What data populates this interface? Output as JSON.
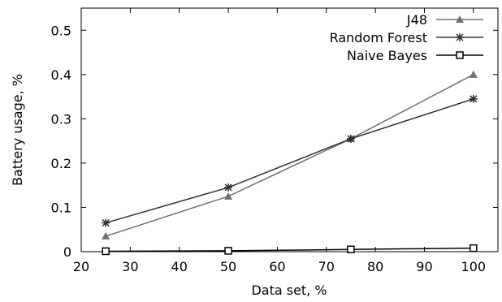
{
  "chart_data": {
    "type": "line",
    "xlabel": "Data set, %",
    "ylabel": "Battery usage, %",
    "xlim": [
      20,
      105
    ],
    "ylim": [
      0,
      0.55
    ],
    "xticks": [
      20,
      30,
      40,
      50,
      60,
      70,
      80,
      90,
      100
    ],
    "yticks": [
      0,
      0.1,
      0.2,
      0.3,
      0.4,
      0.5
    ],
    "grid": false,
    "legend_position": "top-right",
    "series": [
      {
        "name": "J48",
        "marker": "triangle",
        "color": "#707070",
        "x": [
          25,
          50,
          75,
          100
        ],
        "y": [
          0.035,
          0.125,
          0.255,
          0.4
        ]
      },
      {
        "name": "Random Forest",
        "marker": "asterisk",
        "color": "#303030",
        "x": [
          25,
          50,
          75,
          100
        ],
        "y": [
          0.065,
          0.145,
          0.255,
          0.345
        ]
      },
      {
        "name": "Naive Bayes",
        "marker": "square",
        "color": "#000000",
        "x": [
          25,
          50,
          75,
          100
        ],
        "y": [
          0.001,
          0.002,
          0.005,
          0.008
        ]
      }
    ]
  }
}
